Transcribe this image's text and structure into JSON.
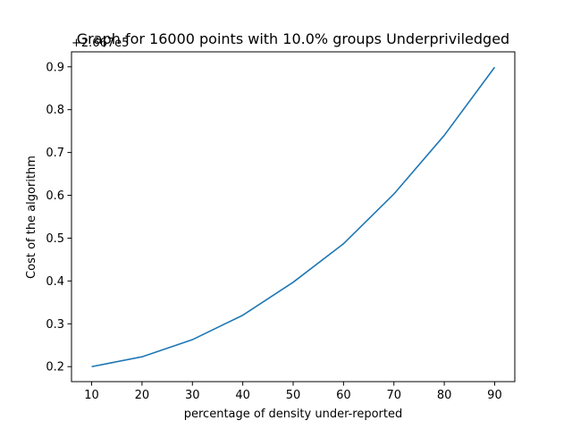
{
  "chart_data": {
    "type": "line",
    "title": "Graph for 16000 points with 10.0% groups Underpriviledged",
    "xlabel": "percentage of density under-reported",
    "ylabel": "Cost of the algorithm",
    "offset_text": "+2.667e5",
    "x": [
      10,
      20,
      30,
      40,
      50,
      60,
      70,
      80,
      90
    ],
    "series": [
      {
        "values": [
          0.2,
          0.223,
          0.263,
          0.32,
          0.397,
          0.487,
          0.603,
          0.74,
          0.899
        ]
      }
    ],
    "xlim": [
      6,
      94
    ],
    "ylim": [
      0.165,
      0.935
    ],
    "xticks": [
      10,
      20,
      30,
      40,
      50,
      60,
      70,
      80,
      90
    ],
    "yticks": [
      0.2,
      0.3,
      0.4,
      0.5,
      0.6,
      0.7,
      0.8,
      0.9
    ],
    "xtick_labels": [
      "10",
      "20",
      "30",
      "40",
      "50",
      "60",
      "70",
      "80",
      "90"
    ],
    "ytick_labels": [
      "0.2",
      "0.3",
      "0.4",
      "0.5",
      "0.6",
      "0.7",
      "0.8",
      "0.9"
    ],
    "grid": false,
    "line_color": "#1f77b4"
  }
}
